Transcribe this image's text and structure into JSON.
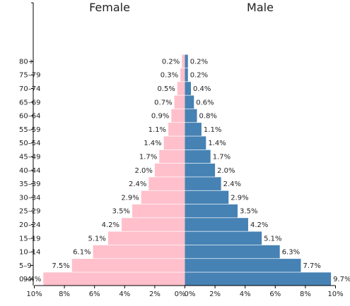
{
  "chart_data": {
    "type": "bar",
    "orientation": "horizontal-population-pyramid",
    "categories": [
      "0–4",
      "5–9",
      "10–14",
      "15–19",
      "20–24",
      "25–29",
      "30–34",
      "35–39",
      "40–44",
      "45–49",
      "50–54",
      "55–59",
      "60–64",
      "65–69",
      "70–74",
      "75–79",
      "80+"
    ],
    "series": [
      {
        "name": "Female",
        "color": "#ffc0cb",
        "values": [
          9.4,
          7.5,
          6.1,
          5.1,
          4.2,
          3.5,
          2.9,
          2.4,
          2.0,
          1.7,
          1.4,
          1.1,
          0.9,
          0.7,
          0.5,
          0.3,
          0.2
        ],
        "labels": [
          "9.4%",
          "7.5%",
          "6.1%",
          "5.1%",
          "4.2%",
          "3.5%",
          "2.9%",
          "2.4%",
          "2.0%",
          "1.7%",
          "1.4%",
          "1.1%",
          "0.9%",
          "0.7%",
          "0.5%",
          "0.3%",
          "0.2%"
        ]
      },
      {
        "name": "Male",
        "color": "#4682b4",
        "values": [
          9.7,
          7.7,
          6.3,
          5.1,
          4.2,
          3.5,
          2.9,
          2.4,
          2.0,
          1.7,
          1.4,
          1.1,
          0.8,
          0.6,
          0.4,
          0.2,
          0.2
        ],
        "labels": [
          "9.7%",
          "7.7%",
          "6.3%",
          "5.1%",
          "4.2%",
          "3.5%",
          "2.9%",
          "2.4%",
          "2.0%",
          "1.7%",
          "1.4%",
          "1.1%",
          "0.8%",
          "0.6%",
          "0.4%",
          "0.2%",
          "0.2%"
        ]
      }
    ],
    "xlim": [
      0,
      10
    ],
    "xticks": [
      "10%",
      "8%",
      "6%",
      "4%",
      "2%",
      "0%",
      "0%",
      "2%",
      "4%",
      "6%",
      "8%",
      "10%"
    ],
    "grid": false,
    "title": "",
    "xlabel": "",
    "ylabel": ""
  }
}
